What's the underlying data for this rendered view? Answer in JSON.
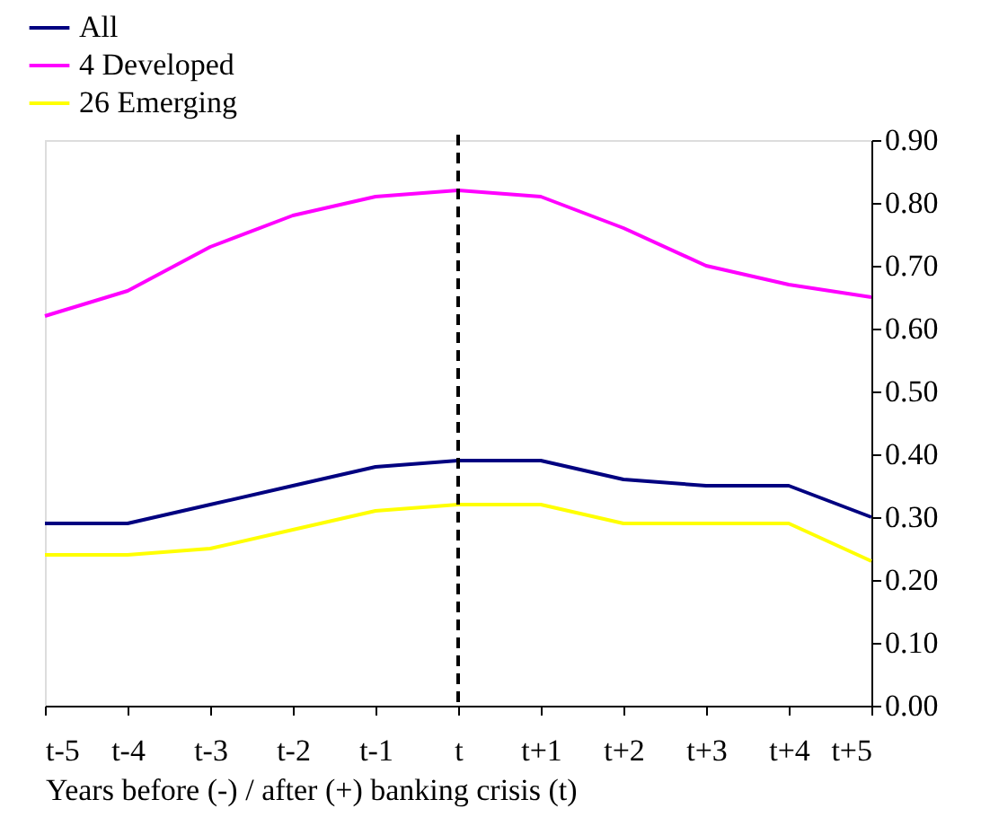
{
  "chart_data": {
    "type": "line",
    "xlabel": "Years before (-) / after (+) banking crisis (t)",
    "categories": [
      "t-5",
      "t-4",
      "t-3",
      "t-2",
      "t-1",
      "t",
      "t+1",
      "t+2",
      "t+3",
      "t+4",
      "t+5"
    ],
    "series": [
      {
        "name": "All",
        "color": "#000080",
        "values": [
          0.29,
          0.29,
          0.32,
          0.35,
          0.38,
          0.39,
          0.39,
          0.36,
          0.35,
          0.35,
          0.3
        ]
      },
      {
        "name": "4 Developed",
        "color": "#ff00ff",
        "values": [
          0.62,
          0.66,
          0.73,
          0.78,
          0.81,
          0.82,
          0.81,
          0.76,
          0.7,
          0.67,
          0.65
        ]
      },
      {
        "name": "26 Emerging",
        "color": "#ffff00",
        "values": [
          0.24,
          0.24,
          0.25,
          0.28,
          0.31,
          0.32,
          0.32,
          0.29,
          0.29,
          0.29,
          0.23
        ]
      }
    ],
    "ylim": [
      0,
      0.9
    ],
    "yticks": [
      {
        "value": 0,
        "label": "0.00"
      },
      {
        "value": 0.1,
        "label": "0.10"
      },
      {
        "value": 0.2,
        "label": "0.20"
      },
      {
        "value": 0.3,
        "label": "0.30"
      },
      {
        "value": 0.4,
        "label": "0.40"
      },
      {
        "value": 0.5,
        "label": "0.50"
      },
      {
        "value": 0.6,
        "label": "0.60"
      },
      {
        "value": 0.7,
        "label": "0.70"
      },
      {
        "value": 0.8,
        "label": "0.80"
      },
      {
        "value": 0.9,
        "label": "0.90"
      }
    ],
    "ref_lines": [
      {
        "axis": "x",
        "value": "t",
        "color": "#000000",
        "line_style": "dashed"
      }
    ],
    "grid": false,
    "legend": "top left",
    "marker": "none",
    "line_style": "solid"
  }
}
